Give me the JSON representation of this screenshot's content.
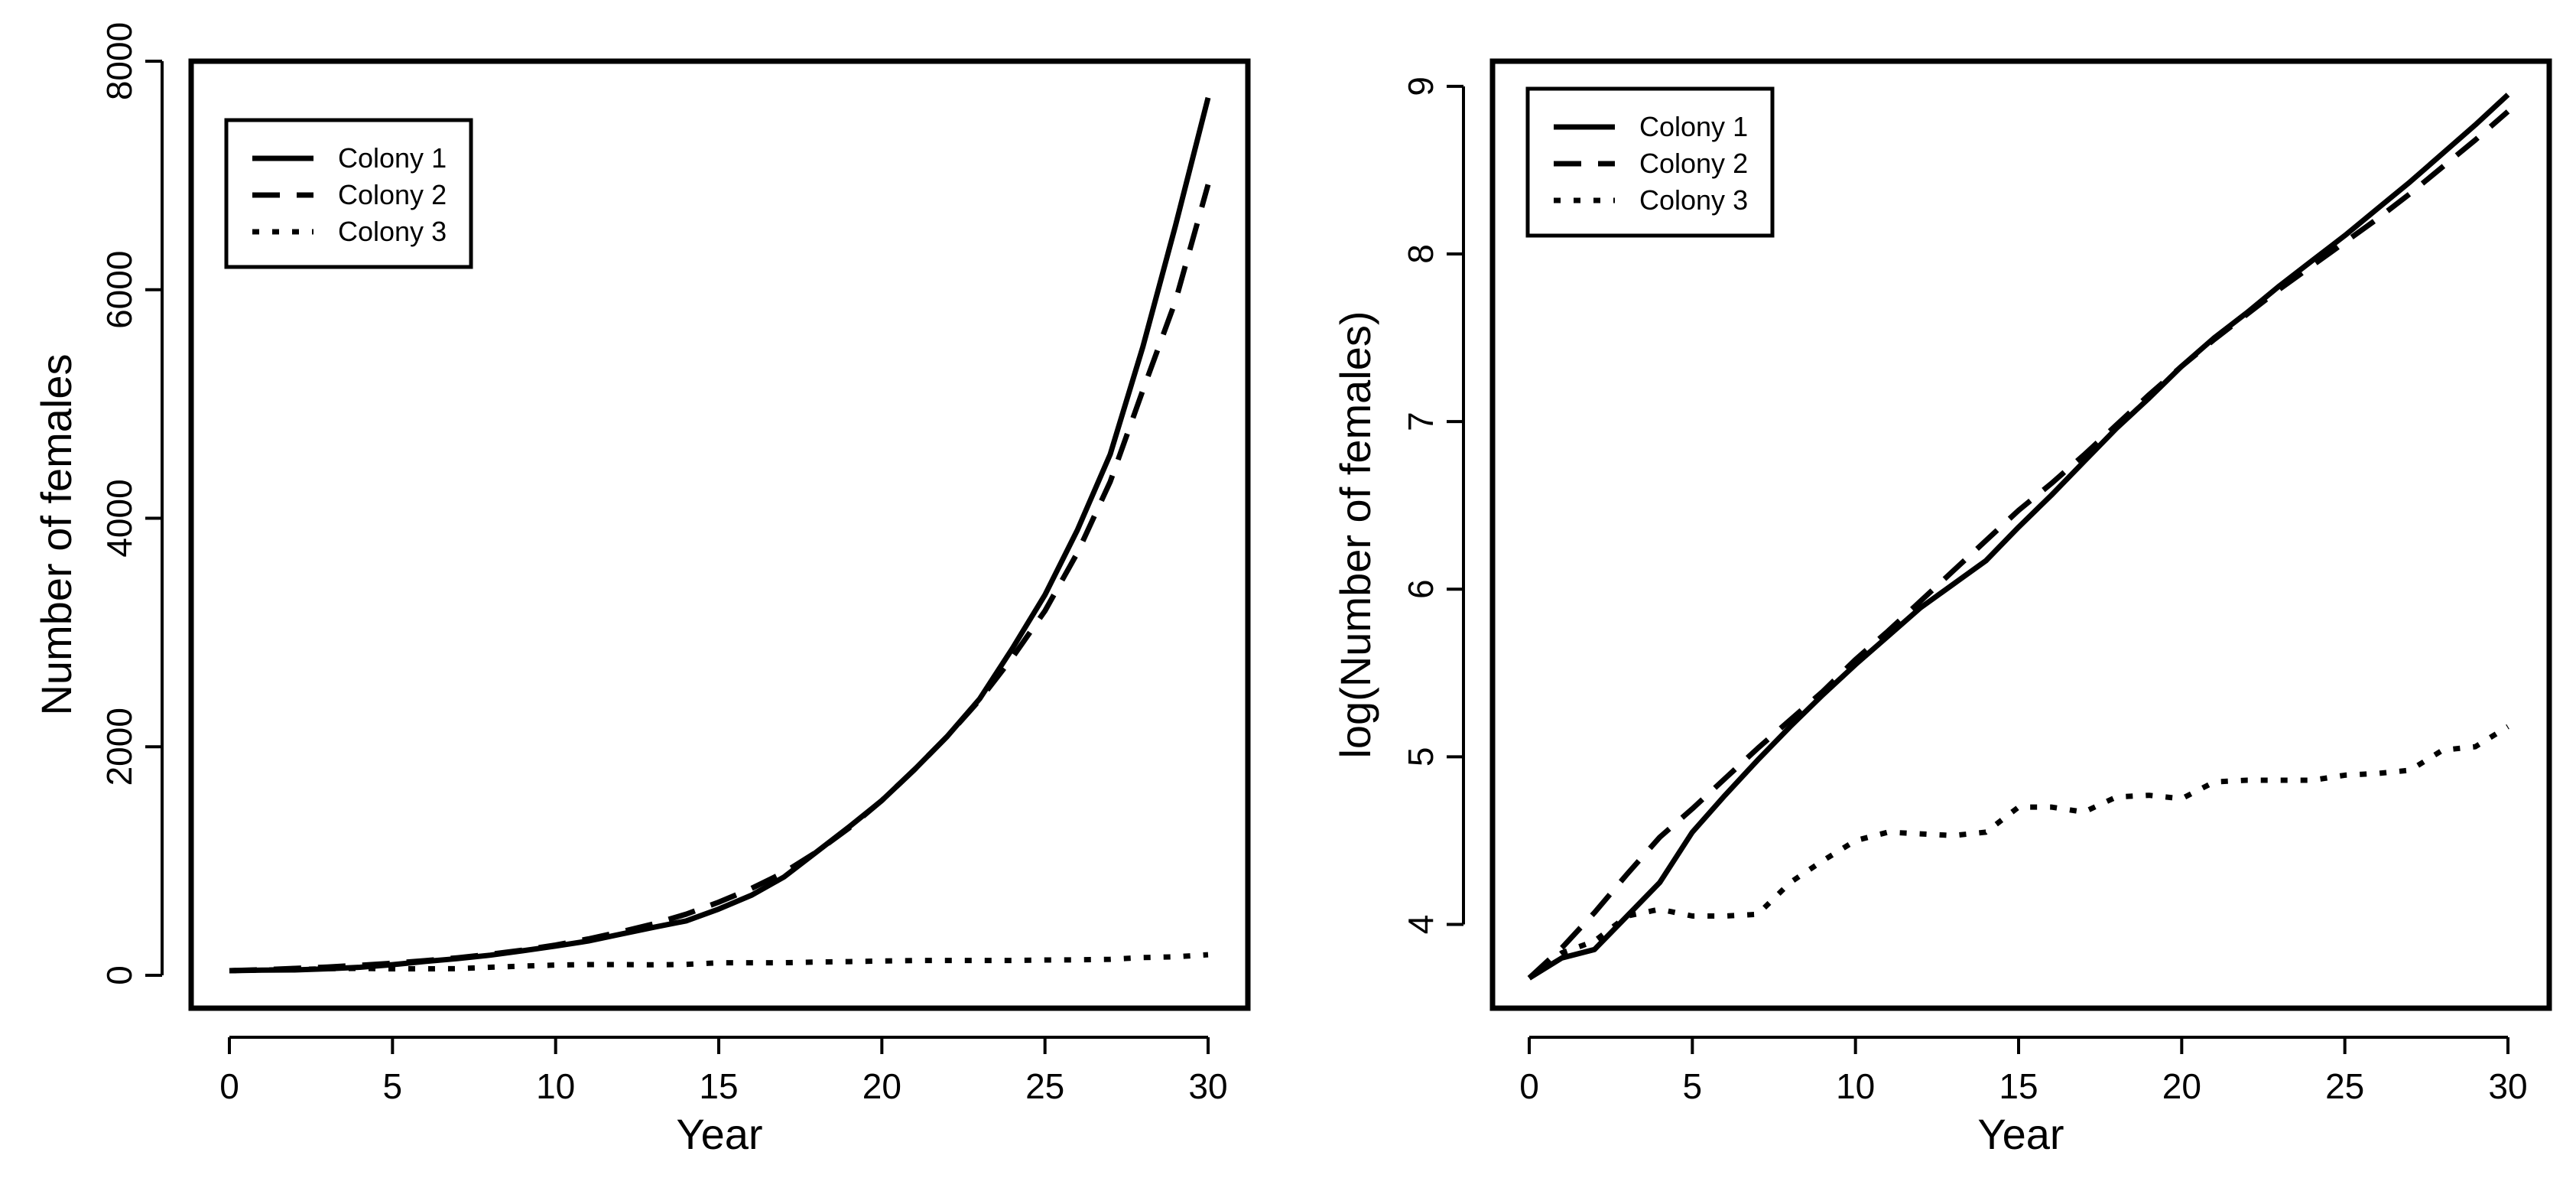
{
  "chart_data": [
    {
      "type": "line",
      "title": "",
      "xlabel": "Year",
      "ylabel": "Number of females",
      "xlim": [
        0,
        30
      ],
      "ylim": [
        0,
        8000
      ],
      "xticks": [
        0,
        5,
        10,
        15,
        20,
        25,
        30
      ],
      "yticks": [
        0,
        2000,
        4000,
        6000,
        8000
      ],
      "xtick_labels": [
        "0",
        "5",
        "10",
        "15",
        "20",
        "25",
        "30"
      ],
      "ytick_labels": [
        "0",
        "2000",
        "4000",
        "6000",
        "8000"
      ],
      "grid": false,
      "legend_position": "top-left",
      "x": [
        0,
        1,
        2,
        3,
        4,
        5,
        6,
        7,
        8,
        9,
        10,
        11,
        12,
        13,
        14,
        15,
        16,
        17,
        18,
        19,
        20,
        21,
        22,
        23,
        24,
        25,
        26,
        27,
        28,
        29,
        30
      ],
      "series": [
        {
          "name": "Colony 1",
          "style": "solid",
          "values": [
            40,
            45,
            47,
            57,
            70,
            93,
            121,
            146,
            176,
            215,
            256,
            300,
            360,
            420,
            476,
            580,
            700,
            860,
            1080,
            1300,
            1530,
            1800,
            2090,
            2420,
            2860,
            3330,
            3900,
            4560,
            5500,
            6560,
            7680
          ]
        },
        {
          "name": "Colony 2",
          "style": "dashed",
          "values": [
            40,
            49,
            60,
            72,
            88,
            106,
            128,
            153,
            184,
            220,
            265,
            318,
            380,
            450,
            535,
            640,
            760,
            900,
            1080,
            1290,
            1530,
            1800,
            2090,
            2410,
            2780,
            3190,
            3700,
            4320,
            5120,
            5900,
            6920
          ]
        },
        {
          "name": "Colony 3",
          "style": "dotted",
          "values": [
            40,
            46,
            50,
            58,
            60,
            57,
            57,
            58,
            70,
            80,
            90,
            94,
            94,
            92,
            95,
            110,
            110,
            110,
            116,
            120,
            125,
            129,
            130,
            130,
            130,
            134,
            135,
            140,
            155,
            162,
            180
          ]
        }
      ]
    },
    {
      "type": "line",
      "title": "",
      "xlabel": "Year",
      "ylabel": "log(Number of females)",
      "xlim": [
        0,
        30
      ],
      "ylim": [
        3.5,
        9.15
      ],
      "xticks": [
        0,
        5,
        10,
        15,
        20,
        25,
        30
      ],
      "yticks": [
        4,
        5,
        6,
        7,
        8,
        9
      ],
      "xtick_labels": [
        "0",
        "5",
        "10",
        "15",
        "20",
        "25",
        "30"
      ],
      "ytick_labels": [
        "4",
        "5",
        "6",
        "7",
        "8",
        "9"
      ],
      "grid": false,
      "legend_position": "top-left",
      "x": [
        0,
        1,
        2,
        3,
        4,
        5,
        6,
        7,
        8,
        9,
        10,
        11,
        12,
        13,
        14,
        15,
        16,
        17,
        18,
        19,
        20,
        21,
        22,
        23,
        24,
        25,
        26,
        27,
        28,
        29,
        30
      ],
      "series": [
        {
          "name": "Colony 1",
          "style": "solid",
          "values": [
            3.68,
            3.8,
            3.85,
            4.05,
            4.25,
            4.55,
            4.77,
            4.98,
            5.18,
            5.37,
            5.55,
            5.72,
            5.89,
            6.03,
            6.17,
            6.37,
            6.56,
            6.76,
            6.96,
            7.14,
            7.33,
            7.5,
            7.65,
            7.81,
            7.96,
            8.11,
            8.27,
            8.43,
            8.6,
            8.77,
            8.95
          ]
        },
        {
          "name": "Colony 2",
          "style": "dashed",
          "values": [
            3.68,
            3.86,
            4.07,
            4.3,
            4.52,
            4.69,
            4.87,
            5.05,
            5.22,
            5.39,
            5.58,
            5.75,
            5.93,
            6.11,
            6.29,
            6.47,
            6.63,
            6.8,
            6.98,
            7.16,
            7.33,
            7.49,
            7.64,
            7.79,
            7.93,
            8.07,
            8.21,
            8.36,
            8.52,
            8.68,
            8.85
          ]
        },
        {
          "name": "Colony 3",
          "style": "dotted",
          "values": [
            3.68,
            3.83,
            3.9,
            4.05,
            4.09,
            4.05,
            4.05,
            4.06,
            4.25,
            4.38,
            4.5,
            4.55,
            4.54,
            4.53,
            4.55,
            4.7,
            4.7,
            4.67,
            4.76,
            4.77,
            4.75,
            4.85,
            4.86,
            4.86,
            4.86,
            4.89,
            4.9,
            4.92,
            5.04,
            5.06,
            5.18
          ]
        }
      ]
    }
  ]
}
